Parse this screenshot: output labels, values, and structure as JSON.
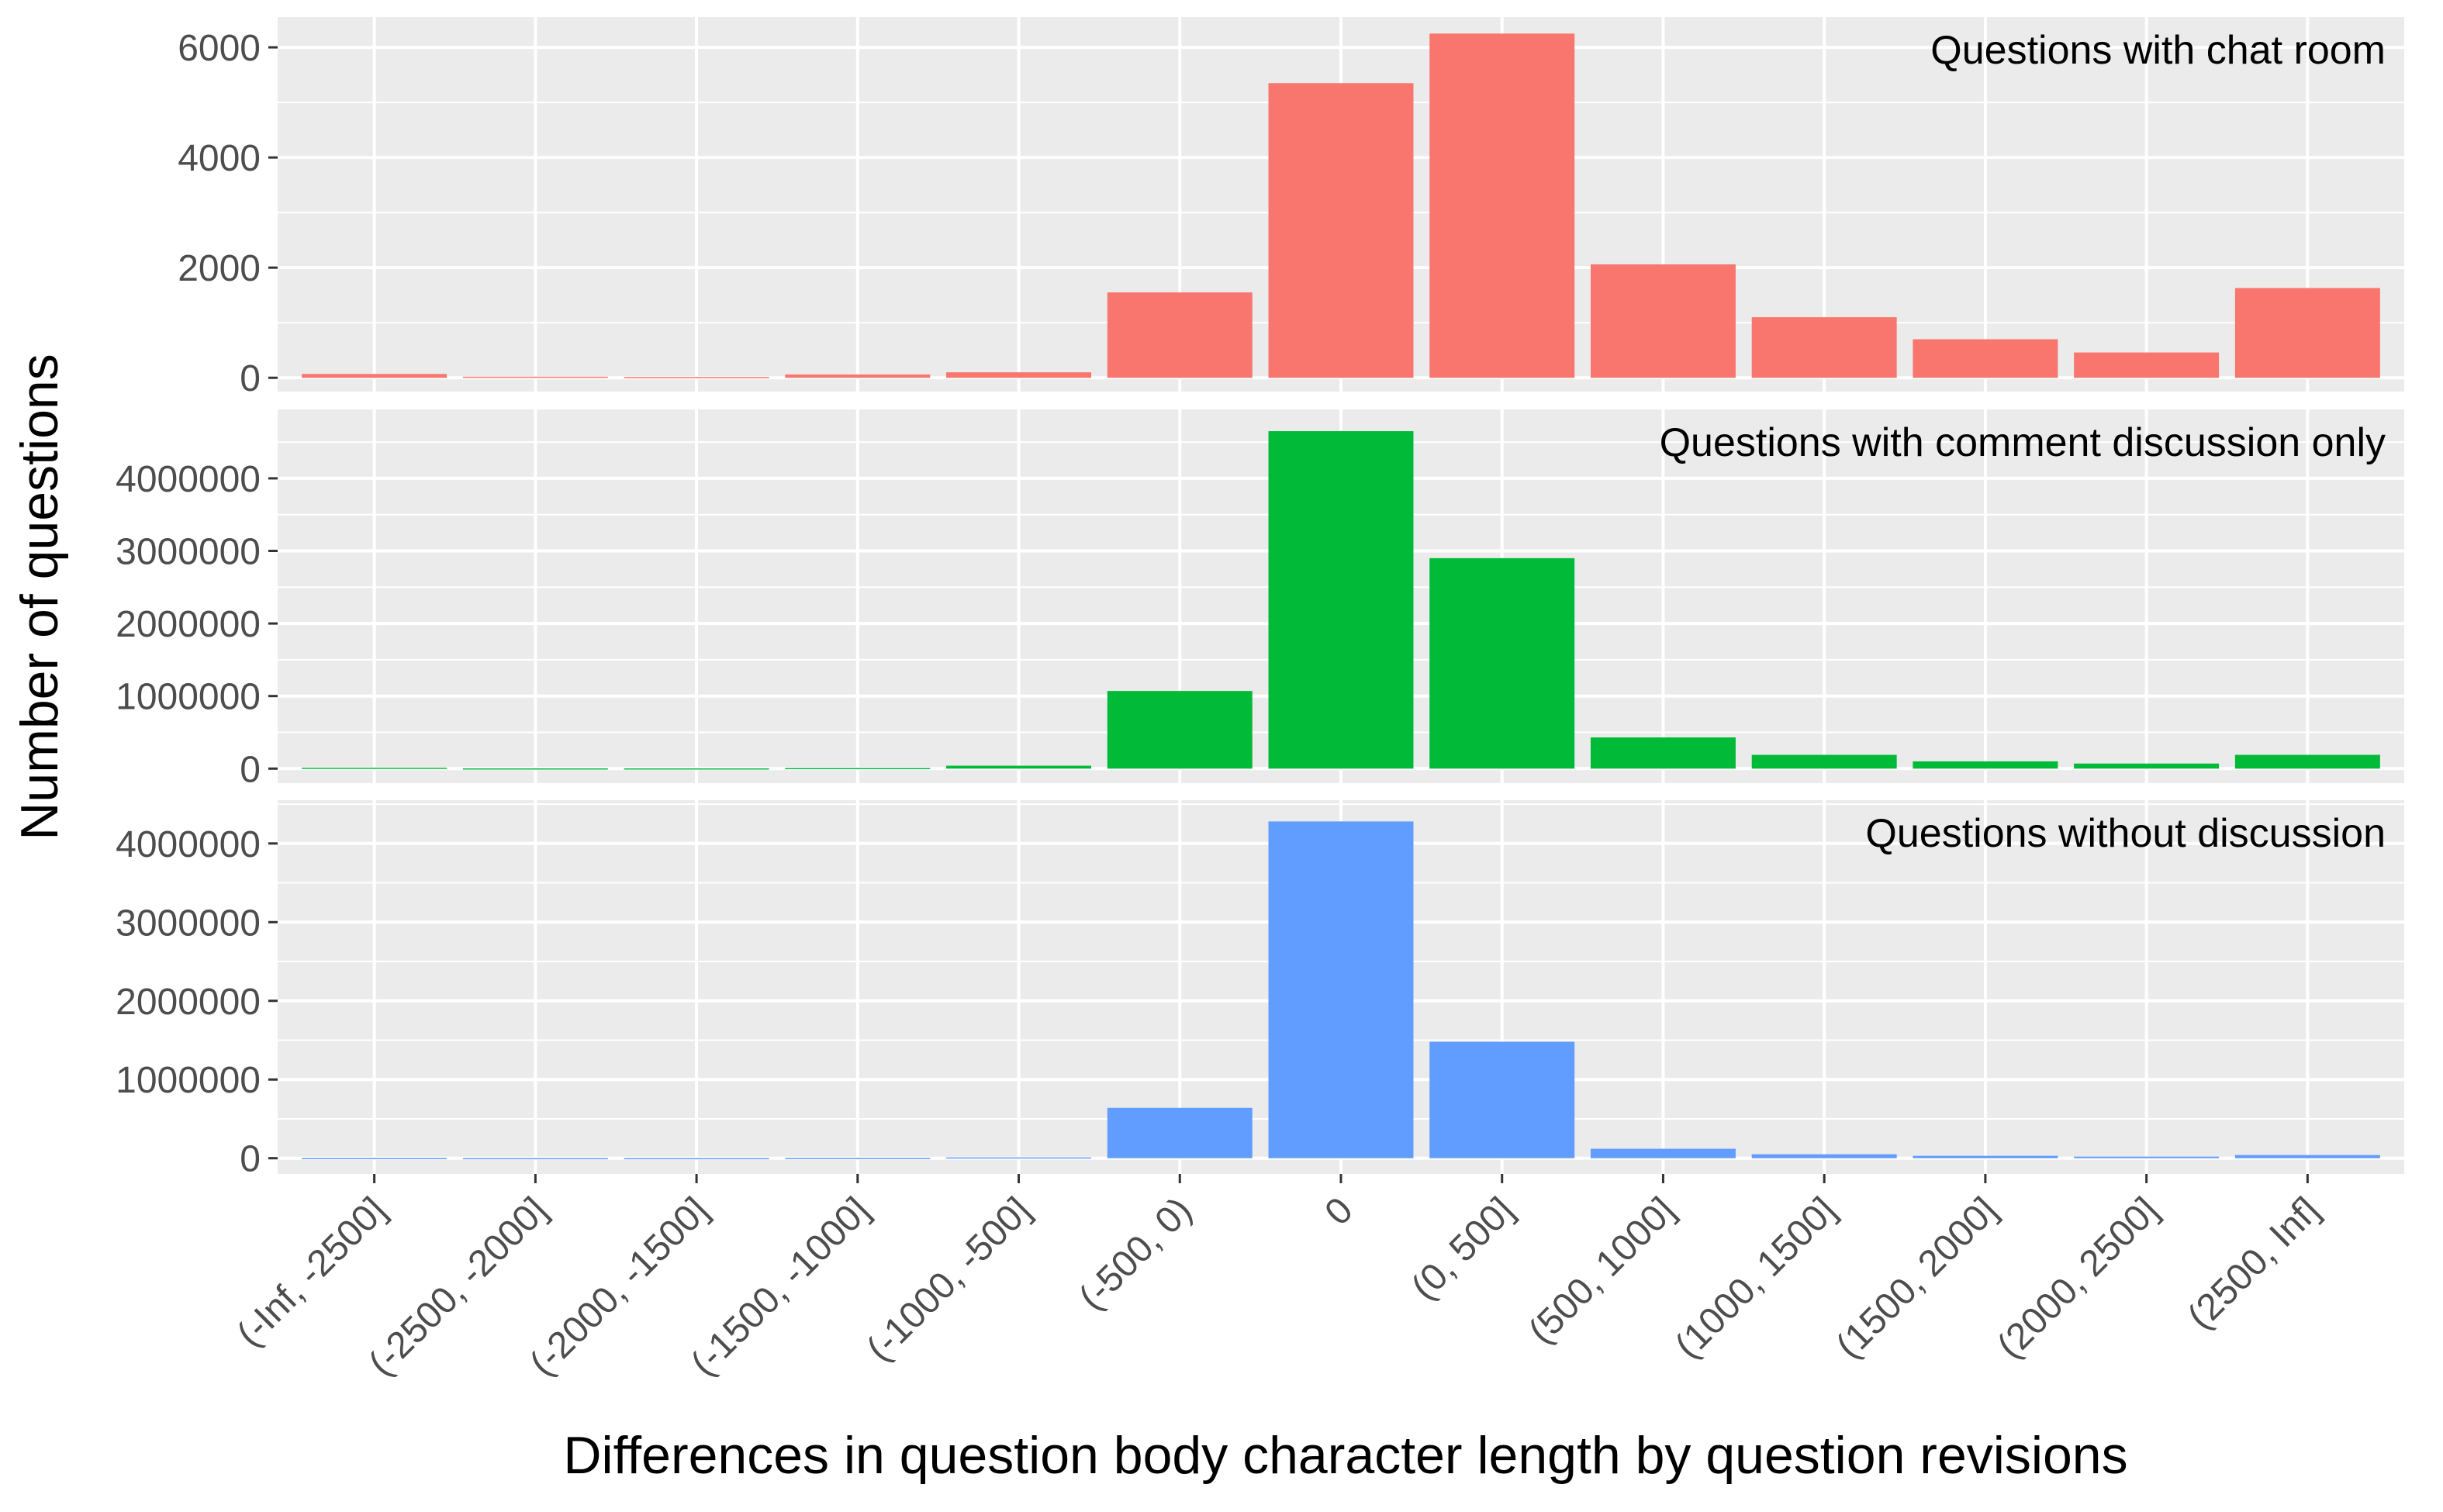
{
  "chart_data": {
    "type": "bar",
    "title": "",
    "xlabel": "Differences in question body character length by question revisions",
    "ylabel": "Number of questions",
    "grid": true,
    "legend": "none",
    "categories": [
      "(-Inf, -2500]",
      "(-2500, -2000]",
      "(-2000, -1500]",
      "(-1500, -1000]",
      "(-1000, -500]",
      "(-500, 0)",
      "0",
      "(0, 500]",
      "(500, 1000]",
      "(1000, 1500]",
      "(1500, 2000]",
      "(2000, 2500]",
      "(2500, Inf]"
    ],
    "panels": [
      {
        "label": "Questions with chat room",
        "color": "#F8766D",
        "ylim": [
          -250,
          6550
        ],
        "yticks": [
          0,
          2000,
          4000,
          6000
        ],
        "yticklabels": [
          "0",
          "2000",
          "4000",
          "6000"
        ],
        "values": [
          70,
          20,
          15,
          60,
          100,
          1550,
          5350,
          6250,
          2060,
          1100,
          700,
          460,
          1630
        ]
      },
      {
        "label": "Questions with comment discussion only",
        "color": "#00BA38",
        "ylim": [
          -200000,
          4950000
        ],
        "yticks": [
          0,
          1000000,
          2000000,
          3000000,
          4000000
        ],
        "yticklabels": [
          "0",
          "1000000",
          "2000000",
          "3000000",
          "4000000"
        ],
        "values": [
          12000,
          3000,
          3000,
          8000,
          40000,
          1070000,
          4650000,
          2900000,
          430000,
          190000,
          100000,
          70000,
          190000
        ]
      },
      {
        "label": "Questions without discussion",
        "color": "#619CFF",
        "ylim": [
          -200000,
          4550000
        ],
        "yticks": [
          0,
          1000000,
          2000000,
          3000000,
          4000000
        ],
        "yticklabels": [
          "0",
          "1000000",
          "2000000",
          "3000000",
          "4000000"
        ],
        "values": [
          2000,
          1000,
          1000,
          3000,
          10000,
          640000,
          4280000,
          1480000,
          120000,
          50000,
          30000,
          20000,
          40000
        ]
      }
    ]
  }
}
